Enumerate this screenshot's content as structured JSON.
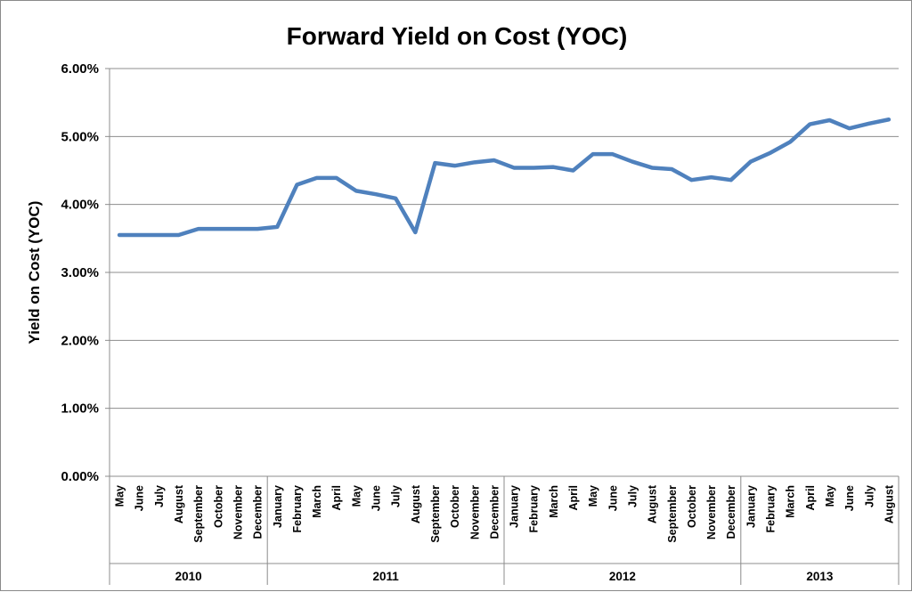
{
  "chart_data": {
    "type": "line",
    "title": "Forward Yield on Cost (YOC)",
    "xlabel": "",
    "ylabel": "Yield on Cost (YOC)",
    "ylim": [
      0,
      6
    ],
    "y_tick_labels": [
      "0.00%",
      "1.00%",
      "2.00%",
      "3.00%",
      "4.00%",
      "5.00%",
      "6.00%"
    ],
    "grid": true,
    "legend": "none",
    "colors": {
      "line": "#4f81bd",
      "grid": "#8c8c8c",
      "axis": "#8c8c8c"
    },
    "years": [
      {
        "label": "2010",
        "count": 8
      },
      {
        "label": "2011",
        "count": 12
      },
      {
        "label": "2012",
        "count": 12
      },
      {
        "label": "2013",
        "count": 8
      }
    ],
    "categories": [
      "May",
      "June",
      "July",
      "August",
      "September",
      "October",
      "November",
      "December",
      "January",
      "February",
      "March",
      "April",
      "May",
      "June",
      "July",
      "August",
      "September",
      "October",
      "November",
      "December",
      "January",
      "February",
      "March",
      "April",
      "May",
      "June",
      "July",
      "August",
      "September",
      "October",
      "November",
      "December",
      "January",
      "February",
      "March",
      "April",
      "May",
      "June",
      "July",
      "August"
    ],
    "series": [
      {
        "values": [
          3.55,
          3.55,
          3.55,
          3.55,
          3.64,
          3.64,
          3.64,
          3.64,
          3.67,
          4.29,
          4.39,
          4.39,
          4.2,
          4.15,
          4.09,
          3.59,
          4.61,
          4.57,
          4.62,
          4.65,
          4.54,
          4.54,
          4.55,
          4.5,
          4.74,
          4.74,
          4.63,
          4.54,
          4.52,
          4.36,
          4.4,
          4.36,
          4.63,
          4.76,
          4.92,
          5.18,
          5.24,
          5.12,
          5.19,
          5.25
        ]
      }
    ]
  }
}
